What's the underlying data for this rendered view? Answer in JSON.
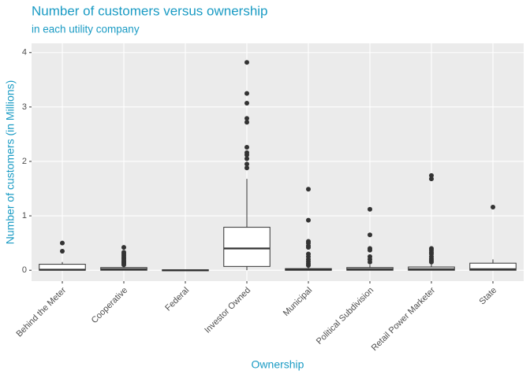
{
  "chart_data": {
    "type": "box",
    "title": "Number of customers versus ownership",
    "subtitle": "in each utility company",
    "x_label": "Ownership",
    "y_label": "Number of customers (in Millions)",
    "categories": [
      "Behind the Meter",
      "Cooperative",
      "Federal",
      "Investor Owned",
      "Municipal",
      "Political Subdivision",
      "Retail Power Marketer",
      "State"
    ],
    "boxes": [
      {
        "min": 0,
        "q1": 0,
        "median": 0.01,
        "q3": 0.11,
        "max": 0.15,
        "outliers": [
          0.5,
          0.35
        ]
      },
      {
        "min": 0,
        "q1": 0,
        "median": 0.02,
        "q3": 0.05,
        "max": 0.08,
        "outliers": [
          0.42,
          0.33,
          0.3,
          0.27,
          0.24,
          0.21,
          0.18,
          0.16,
          0.14,
          0.12,
          0.1
        ]
      },
      {
        "min": -0.01,
        "q1": -0.01,
        "median": 0,
        "q3": 0.01,
        "max": 0.01,
        "outliers": []
      },
      {
        "min": 0,
        "q1": 0.07,
        "median": 0.4,
        "q3": 0.79,
        "max": 1.68,
        "outliers": [
          3.82,
          3.25,
          3.07,
          2.79,
          2.72,
          2.26,
          2.16,
          2.12,
          2.05,
          1.95,
          1.88
        ]
      },
      {
        "min": 0,
        "q1": 0,
        "median": 0.01,
        "q3": 0.03,
        "max": 0.07,
        "outliers": [
          1.49,
          0.92,
          0.53,
          0.5,
          0.45,
          0.42,
          0.3,
          0.25,
          0.2,
          0.16,
          0.12,
          0.09
        ]
      },
      {
        "min": 0,
        "q1": 0,
        "median": 0.02,
        "q3": 0.05,
        "max": 0.1,
        "outliers": [
          1.12,
          0.65,
          0.4,
          0.37,
          0.25,
          0.2,
          0.15
        ]
      },
      {
        "min": 0,
        "q1": 0,
        "median": 0.02,
        "q3": 0.06,
        "max": 0.13,
        "outliers": [
          1.74,
          1.68,
          0.4,
          0.37,
          0.33,
          0.3,
          0.25,
          0.21,
          0.18,
          0.15
        ]
      },
      {
        "min": 0,
        "q1": 0,
        "median": 0.02,
        "q3": 0.13,
        "max": 0.2,
        "outliers": [
          1.16
        ]
      }
    ],
    "ylim": [
      -0.2,
      4.17
    ],
    "yticks": [
      0,
      1,
      2,
      3,
      4
    ],
    "grid": true,
    "title_color": "#1a9bc4",
    "box_fill": "#ffffff",
    "line_color": "#333333",
    "panel_color": "#ebebeb"
  }
}
